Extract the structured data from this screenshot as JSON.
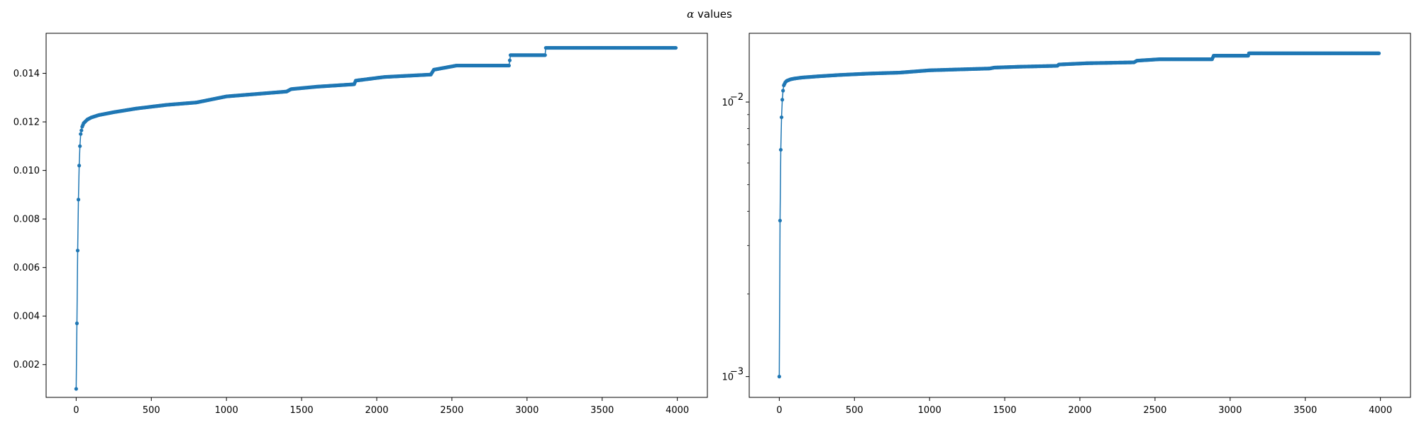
{
  "figure": {
    "title_symbol": "α",
    "title_text": " values"
  },
  "chart_data": [
    {
      "type": "line",
      "marker": "dot",
      "color": "#1f77b4",
      "yscale": "linear",
      "xlim": [
        -200,
        4200
      ],
      "ylim": [
        0.00065,
        0.01565
      ],
      "xticks": [
        0,
        500,
        1000,
        1500,
        2000,
        2500,
        3000,
        3500,
        4000
      ],
      "xtick_labels": [
        "0",
        "500",
        "1000",
        "1500",
        "2000",
        "2500",
        "3000",
        "3500",
        "4000"
      ],
      "yticks": [
        0.002,
        0.004,
        0.006,
        0.008,
        0.01,
        0.012,
        0.014
      ],
      "ytick_labels": [
        "0.002",
        "0.004",
        "0.006",
        "0.008",
        "0.010",
        "0.012",
        "0.014"
      ],
      "grid": false,
      "x_range": [
        0,
        3990
      ],
      "curve": {
        "x": [
          0,
          5,
          10,
          15,
          20,
          25,
          30,
          40,
          50,
          75,
          100,
          150,
          250,
          400,
          600,
          800,
          1000,
          1200,
          1400,
          1430,
          1600,
          1850,
          1860,
          2050,
          2360,
          2380,
          2530,
          2880,
          2890,
          3120,
          3125,
          3990
        ],
        "y": [
          0.001,
          0.0037,
          0.0067,
          0.0088,
          0.0102,
          0.011,
          0.0115,
          0.0118,
          0.01195,
          0.0121,
          0.01218,
          0.01228,
          0.0124,
          0.01255,
          0.0127,
          0.0128,
          0.01305,
          0.01315,
          0.01325,
          0.01335,
          0.01345,
          0.01355,
          0.0137,
          0.01385,
          0.01395,
          0.01415,
          0.01432,
          0.01432,
          0.01475,
          0.01475,
          0.01505,
          0.01505
        ]
      }
    },
    {
      "type": "line",
      "marker": "dot",
      "color": "#1f77b4",
      "yscale": "log",
      "xlim": [
        -200,
        4200
      ],
      "ylim": [
        0.00084,
        0.0178
      ],
      "xticks": [
        0,
        500,
        1000,
        1500,
        2000,
        2500,
        3000,
        3500,
        4000
      ],
      "xtick_labels": [
        "0",
        "500",
        "1000",
        "1500",
        "2000",
        "2500",
        "3000",
        "3500",
        "4000"
      ],
      "yticks_major": [
        {
          "base": "10",
          "exp": "−3",
          "value": 0.001
        },
        {
          "base": "10",
          "exp": "−2",
          "value": 0.01
        }
      ],
      "yticks_minor": [
        0.002,
        0.003,
        0.004,
        0.005,
        0.006,
        0.007,
        0.008,
        0.009
      ],
      "grid": false,
      "x_range": [
        0,
        3990
      ],
      "curve": "same as first panel"
    }
  ]
}
